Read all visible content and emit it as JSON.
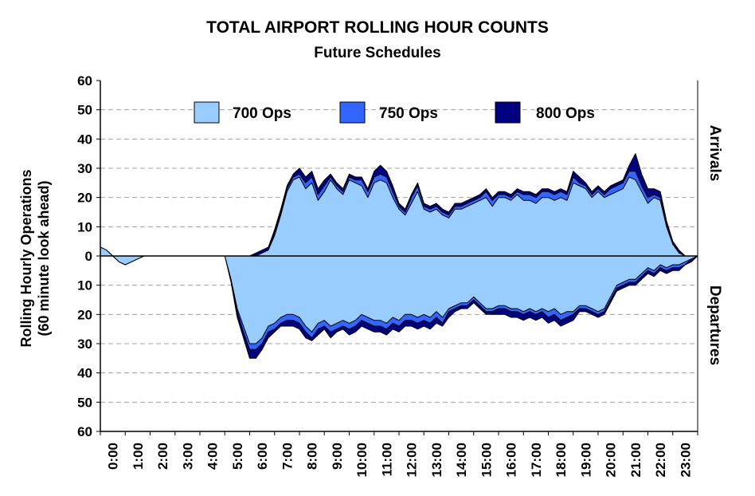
{
  "chart_data": {
    "type": "area",
    "title": "TOTAL AIRPORT ROLLING HOUR COUNTS",
    "subtitle": "Future Schedules",
    "ylabel_line1": "Rolling Hourly Operations",
    "ylabel_line2": "(60 minute look ahead)",
    "upper_label": "Arrivals",
    "lower_label": "Departures",
    "ylim": [
      -60,
      60
    ],
    "y_ticks": [
      60,
      50,
      40,
      30,
      20,
      10,
      0,
      10,
      20,
      30,
      40,
      50,
      60
    ],
    "x_range": [
      0,
      24
    ],
    "x_ticks": [
      "0:00",
      "1:00",
      "2:00",
      "3:00",
      "4:00",
      "5:00",
      "6:00",
      "7:00",
      "8:00",
      "9:00",
      "10:00",
      "11:00",
      "12:00",
      "13:00",
      "14:00",
      "15:00",
      "16:00",
      "17:00",
      "18:00",
      "19:00",
      "20:00",
      "21:00",
      "22:00",
      "23:00"
    ],
    "grid": true,
    "legend_position": "top",
    "legend": [
      {
        "name": "700 Ops",
        "color": "#99ccff"
      },
      {
        "name": "750 Ops",
        "color": "#3366ff"
      },
      {
        "name": "800 Ops",
        "color": "#000080"
      }
    ],
    "arrivals": {
      "x": [
        0,
        0.25,
        0.5,
        0.75,
        1,
        1.25,
        1.5,
        1.75,
        2,
        2.5,
        3,
        3.5,
        4,
        4.5,
        5,
        5.5,
        6,
        6.25,
        6.5,
        6.75,
        7,
        7.25,
        7.5,
        7.75,
        8,
        8.25,
        8.5,
        8.75,
        9,
        9.25,
        9.5,
        9.75,
        10,
        10.25,
        10.5,
        10.75,
        11,
        11.25,
        11.5,
        11.75,
        12,
        12.25,
        12.5,
        12.75,
        13,
        13.25,
        13.5,
        13.75,
        14,
        14.25,
        14.5,
        14.75,
        15,
        15.25,
        15.5,
        15.75,
        16,
        16.25,
        16.5,
        16.75,
        17,
        17.25,
        17.5,
        17.75,
        18,
        18.25,
        18.5,
        18.75,
        19,
        19.25,
        19.5,
        19.75,
        20,
        20.25,
        20.5,
        20.75,
        21,
        21.25,
        21.5,
        21.75,
        22,
        22.25,
        22.5,
        22.75,
        23,
        23.25,
        23.5,
        23.75,
        24
      ],
      "s700": [
        3,
        2,
        0,
        -2,
        -3,
        -2,
        -1,
        0,
        0,
        0,
        0,
        0,
        0,
        0,
        0,
        0,
        0,
        0,
        1,
        2,
        7,
        14,
        22,
        26,
        27,
        23,
        25,
        19,
        22,
        26,
        23,
        21,
        26,
        25,
        24,
        20,
        25,
        26,
        25,
        20,
        16,
        14,
        18,
        22,
        16,
        15,
        16,
        14,
        13,
        16,
        16,
        17,
        18,
        19,
        20,
        17,
        20,
        20,
        19,
        21,
        19,
        19,
        18,
        20,
        20,
        19,
        20,
        19,
        25,
        24,
        23,
        20,
        22,
        20,
        21,
        22,
        23,
        27,
        26,
        22,
        18,
        20,
        19,
        10,
        4,
        1,
        0
      ],
      "s750": [
        3,
        2,
        0,
        -2,
        -3,
        -2,
        -1,
        0,
        0,
        0,
        0,
        0,
        0,
        0,
        0,
        0,
        0,
        0,
        1,
        2,
        8,
        15,
        23,
        27,
        28,
        25,
        27,
        21,
        24,
        27,
        24,
        22,
        27,
        26,
        26,
        22,
        27,
        28,
        27,
        22,
        17,
        15,
        20,
        24,
        17,
        16,
        17,
        15,
        14,
        17,
        17,
        18,
        19,
        20,
        22,
        19,
        21,
        21,
        20,
        22,
        21,
        21,
        20,
        22,
        22,
        21,
        22,
        21,
        27,
        25,
        24,
        21,
        23,
        21,
        23,
        24,
        25,
        29,
        29,
        24,
        20,
        21,
        20,
        11,
        4,
        1,
        0
      ],
      "s800": [
        3,
        2,
        0,
        -2,
        -3,
        -2,
        -1,
        0,
        0,
        0,
        0,
        0,
        0,
        0,
        0,
        0,
        0,
        1,
        2,
        3,
        9,
        16,
        24,
        28,
        30,
        27,
        29,
        23,
        26,
        28,
        25,
        23,
        28,
        27,
        27,
        23,
        29,
        31,
        29,
        24,
        18,
        16,
        21,
        25,
        18,
        17,
        18,
        16,
        15,
        18,
        18,
        19,
        20,
        21,
        23,
        20,
        22,
        22,
        21,
        23,
        22,
        22,
        21,
        23,
        23,
        22,
        23,
        22,
        29,
        27,
        25,
        22,
        24,
        22,
        24,
        25,
        26,
        31,
        35,
        28,
        23,
        23,
        22,
        12,
        5,
        2,
        0
      ]
    },
    "departures": {
      "x": [
        0,
        0.5,
        1,
        1.5,
        2,
        2.5,
        3,
        3.5,
        4,
        4.5,
        5,
        5.25,
        5.5,
        5.75,
        6,
        6.25,
        6.5,
        6.75,
        7,
        7.25,
        7.5,
        7.75,
        8,
        8.25,
        8.5,
        8.75,
        9,
        9.25,
        9.5,
        9.75,
        10,
        10.25,
        10.5,
        10.75,
        11,
        11.25,
        11.5,
        11.75,
        12,
        12.25,
        12.5,
        12.75,
        13,
        13.25,
        13.5,
        13.75,
        14,
        14.25,
        14.5,
        14.75,
        15,
        15.25,
        15.5,
        15.75,
        16,
        16.25,
        16.5,
        16.75,
        17,
        17.25,
        17.5,
        17.75,
        18,
        18.25,
        18.5,
        18.75,
        19,
        19.25,
        19.5,
        19.75,
        20,
        20.25,
        20.5,
        20.75,
        21,
        21.25,
        21.5,
        21.75,
        22,
        22.25,
        22.5,
        22.75,
        23,
        23.25,
        23.5,
        23.75,
        24
      ],
      "s700": [
        0,
        0,
        0,
        0,
        0,
        0,
        0,
        0,
        0,
        0,
        0,
        -8,
        -18,
        -24,
        -30,
        -30,
        -28,
        -24,
        -23,
        -21,
        -20,
        -20,
        -21,
        -24,
        -26,
        -23,
        -22,
        -24,
        -23,
        -22,
        -23,
        -22,
        -20,
        -21,
        -22,
        -22,
        -23,
        -21,
        -22,
        -20,
        -20,
        -21,
        -20,
        -21,
        -19,
        -21,
        -18,
        -17,
        -16,
        -16,
        -14,
        -16,
        -18,
        -18,
        -17,
        -17,
        -18,
        -18,
        -19,
        -18,
        -19,
        -18,
        -19,
        -18,
        -20,
        -19,
        -19,
        -17,
        -17,
        -18,
        -19,
        -18,
        -14,
        -10,
        -9,
        -8,
        -8,
        -6,
        -4,
        -5,
        -3,
        -4,
        -3,
        -3,
        -2,
        -1,
        0
      ],
      "s750": [
        0,
        0,
        0,
        0,
        0,
        0,
        0,
        0,
        0,
        0,
        0,
        -8,
        -19,
        -26,
        -32,
        -32,
        -30,
        -26,
        -25,
        -23,
        -22,
        -22,
        -23,
        -26,
        -28,
        -25,
        -24,
        -26,
        -25,
        -24,
        -25,
        -24,
        -22,
        -23,
        -24,
        -24,
        -25,
        -23,
        -24,
        -22,
        -22,
        -23,
        -22,
        -23,
        -21,
        -23,
        -19,
        -18,
        -17,
        -17,
        -15,
        -17,
        -19,
        -19,
        -18,
        -18,
        -19,
        -19,
        -20,
        -19,
        -20,
        -19,
        -21,
        -20,
        -22,
        -21,
        -20,
        -18,
        -18,
        -19,
        -20,
        -19,
        -15,
        -11,
        -10,
        -9,
        -9,
        -7,
        -5,
        -6,
        -4,
        -5,
        -4,
        -4,
        -3,
        -1,
        0
      ],
      "s800": [
        0,
        0,
        0,
        0,
        0,
        0,
        0,
        0,
        0,
        0,
        0,
        -9,
        -21,
        -28,
        -35,
        -35,
        -32,
        -28,
        -26,
        -24,
        -24,
        -24,
        -25,
        -28,
        -29,
        -27,
        -25,
        -28,
        -26,
        -25,
        -27,
        -26,
        -24,
        -25,
        -26,
        -26,
        -27,
        -25,
        -26,
        -24,
        -24,
        -25,
        -24,
        -25,
        -23,
        -24,
        -21,
        -19,
        -18,
        -18,
        -16,
        -18,
        -20,
        -20,
        -20,
        -20,
        -21,
        -21,
        -22,
        -21,
        -22,
        -21,
        -23,
        -22,
        -24,
        -23,
        -22,
        -19,
        -19,
        -20,
        -21,
        -20,
        -16,
        -12,
        -11,
        -10,
        -10,
        -8,
        -6,
        -7,
        -5,
        -6,
        -5,
        -5,
        -3,
        -2,
        0
      ]
    }
  }
}
